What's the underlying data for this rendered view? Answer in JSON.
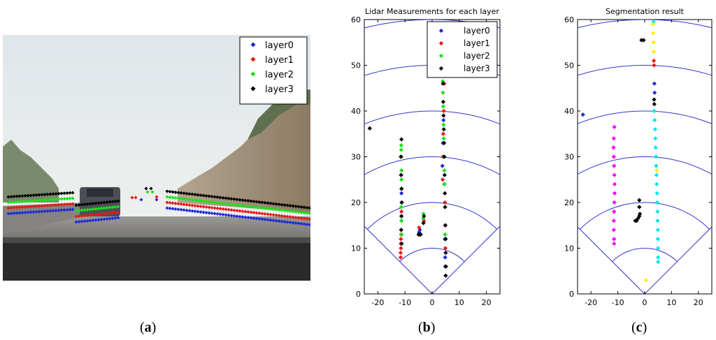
{
  "captions": {
    "a": {
      "open": "(",
      "letter": "a",
      "close": ")"
    },
    "b": {
      "open": "(",
      "letter": "b",
      "close": ")"
    },
    "c": {
      "open": "(",
      "letter": "c",
      "close": ")"
    }
  },
  "colors": {
    "layer0": "#1f2bd6",
    "layer1": "#e31a1a",
    "layer2": "#1ee01e",
    "layer3": "#000000",
    "magenta": "#ff00ff",
    "cyan": "#00e5ee",
    "yellow": "#ffee00",
    "grid": "#3333cc"
  },
  "photo_legend": {
    "entries": [
      "layer0",
      "layer1",
      "layer2",
      "layer3"
    ]
  },
  "chart_data": [
    {
      "type": "scatter",
      "title": "Lidar Measurements for each layer",
      "xlim": [
        -25,
        25
      ],
      "ylim": [
        0,
        60
      ],
      "xticks": [
        -20,
        -10,
        0,
        10,
        20
      ],
      "yticks": [
        0,
        10,
        20,
        30,
        40,
        50,
        60
      ],
      "legend": {
        "position": "top-right",
        "entries": [
          "layer0",
          "layer1",
          "layer2",
          "layer3"
        ]
      },
      "series": [
        {
          "name": "layer0",
          "color_key": "layer0",
          "points": [
            [
              -11.5,
              11
            ],
            [
              -11.4,
              14
            ],
            [
              -11.3,
              17
            ],
            [
              -11.2,
              20
            ],
            [
              -11.3,
              22
            ],
            [
              -4.8,
              13.5
            ],
            [
              -4.5,
              14
            ],
            [
              3.8,
              28
            ],
            [
              4.0,
              33
            ],
            [
              4.2,
              38
            ],
            [
              4.5,
              24
            ],
            [
              4.7,
              12
            ],
            [
              4.8,
              6
            ],
            [
              5.0,
              4
            ],
            [
              4.8,
              8
            ]
          ]
        },
        {
          "name": "layer1",
          "color_key": "layer1",
          "points": [
            [
              -11.6,
              8
            ],
            [
              -11.6,
              9
            ],
            [
              -11.5,
              10
            ],
            [
              -11.5,
              11
            ],
            [
              -11.5,
              12
            ],
            [
              -11.4,
              13
            ],
            [
              -11.4,
              14
            ],
            [
              -11.3,
              16
            ],
            [
              -11.3,
              18
            ],
            [
              -11.2,
              20
            ],
            [
              -11.5,
              26
            ],
            [
              -11.6,
              30
            ],
            [
              1.0,
              52.8
            ],
            [
              3.9,
              25
            ],
            [
              4.0,
              30
            ],
            [
              4.1,
              35
            ],
            [
              4.3,
              40
            ],
            [
              4.5,
              46
            ],
            [
              4.7,
              20
            ],
            [
              4.8,
              15
            ],
            [
              4.9,
              10
            ],
            [
              5.0,
              6
            ],
            [
              -3.0,
              16
            ],
            [
              -4.8,
              14.5
            ]
          ]
        },
        {
          "name": "layer2",
          "color_key": "layer2",
          "points": [
            [
              -11.4,
              32.5
            ],
            [
              -11.4,
              31.5
            ],
            [
              -11.5,
              30
            ],
            [
              -11.3,
              27
            ],
            [
              -11.3,
              25
            ],
            [
              -11.2,
              23
            ],
            [
              -11.4,
              19
            ],
            [
              -11.3,
              16
            ],
            [
              -11.2,
              13
            ],
            [
              3.9,
              46.5
            ],
            [
              4.0,
              44
            ],
            [
              4.1,
              41
            ],
            [
              4.2,
              37
            ],
            [
              4.3,
              34
            ],
            [
              4.4,
              30
            ],
            [
              4.5,
              27
            ],
            [
              4.6,
              24
            ],
            [
              4.7,
              19
            ],
            [
              4.8,
              13
            ],
            [
              -3.2,
              17.5
            ],
            [
              -3.3,
              16.5
            ]
          ]
        },
        {
          "name": "layer3",
          "color_key": "layer3",
          "points": [
            [
              -23,
              36.2
            ],
            [
              -11.3,
              33.8
            ],
            [
              -11.4,
              30
            ],
            [
              -11.4,
              26
            ],
            [
              -11.3,
              23
            ],
            [
              -11.2,
              20
            ],
            [
              -11.3,
              17
            ],
            [
              -11.4,
              14
            ],
            [
              -11.2,
              11
            ],
            [
              4.0,
              46
            ],
            [
              4.1,
              42
            ],
            [
              4.2,
              39
            ],
            [
              4.3,
              36
            ],
            [
              4.4,
              33
            ],
            [
              4.5,
              30
            ],
            [
              4.6,
              26
            ],
            [
              4.7,
              22
            ],
            [
              4.8,
              19
            ],
            [
              4.9,
              15
            ],
            [
              5.0,
              12
            ],
            [
              5.0,
              9
            ],
            [
              5.1,
              6
            ],
            [
              5.0,
              4
            ],
            [
              -3.0,
              17
            ],
            [
              -3.2,
              15.5
            ],
            [
              -5.0,
              13
            ],
            [
              -4.6,
              13
            ],
            [
              -4.2,
              13
            ]
          ]
        }
      ]
    },
    {
      "type": "scatter",
      "title": "Segmentation result",
      "xlim": [
        -25,
        25
      ],
      "ylim": [
        0,
        60
      ],
      "xticks": [
        -20,
        -10,
        0,
        10,
        20
      ],
      "yticks": [
        0,
        10,
        20,
        30,
        40,
        50,
        60
      ],
      "series": [
        {
          "color_key": "magenta",
          "points": [
            [
              -11.3,
              36.5
            ],
            [
              -11.5,
              34
            ],
            [
              -11.6,
              32
            ],
            [
              -11.5,
              30
            ],
            [
              -11.4,
              28
            ],
            [
              -11.3,
              26
            ],
            [
              -11.2,
              24
            ],
            [
              -11.2,
              22
            ],
            [
              -11.3,
              20
            ],
            [
              -11.4,
              18
            ],
            [
              -11.5,
              16
            ],
            [
              -11.5,
              14
            ],
            [
              -11.4,
              12
            ],
            [
              -11.4,
              11
            ]
          ]
        },
        {
          "color_key": "cyan",
          "points": [
            [
              3.3,
              59.5
            ],
            [
              3.5,
              40
            ],
            [
              3.7,
              38
            ],
            [
              3.9,
              36
            ],
            [
              4.0,
              34
            ],
            [
              4.1,
              32
            ],
            [
              4.2,
              30
            ],
            [
              4.3,
              28
            ],
            [
              4.4,
              26
            ],
            [
              4.5,
              24
            ],
            [
              4.6,
              22
            ],
            [
              4.7,
              20
            ],
            [
              4.8,
              18
            ],
            [
              4.8,
              16
            ],
            [
              4.9,
              14
            ],
            [
              4.9,
              12
            ],
            [
              5.0,
              10
            ],
            [
              5.0,
              8
            ],
            [
              5.0,
              7
            ]
          ]
        },
        {
          "color_key": "yellow",
          "points": [
            [
              3.0,
              59
            ],
            [
              3.2,
              57
            ],
            [
              3.3,
              55
            ],
            [
              3.4,
              53
            ],
            [
              3.5,
              51
            ],
            [
              0.5,
              3
            ],
            [
              4.5,
              27
            ]
          ]
        },
        {
          "color_key": "layer1",
          "points": [
            [
              3.4,
              51
            ],
            [
              3.5,
              50
            ]
          ]
        },
        {
          "color_key": "layer3",
          "points": [
            [
              -1.2,
              55.5
            ],
            [
              -0.4,
              55.5
            ],
            [
              3.5,
              42.5
            ],
            [
              3.6,
              41.5
            ],
            [
              -2.0,
              20.5
            ],
            [
              -2.0,
              19
            ],
            [
              -1.8,
              17.5
            ],
            [
              -3.5,
              16
            ],
            [
              -3.0,
              16
            ],
            [
              -2.5,
              16.5
            ],
            [
              -2.0,
              17
            ]
          ]
        },
        {
          "color_key": "layer0",
          "points": [
            [
              -23,
              39.2
            ],
            [
              3.6,
              46
            ],
            [
              3.7,
              44
            ]
          ]
        }
      ]
    }
  ]
}
